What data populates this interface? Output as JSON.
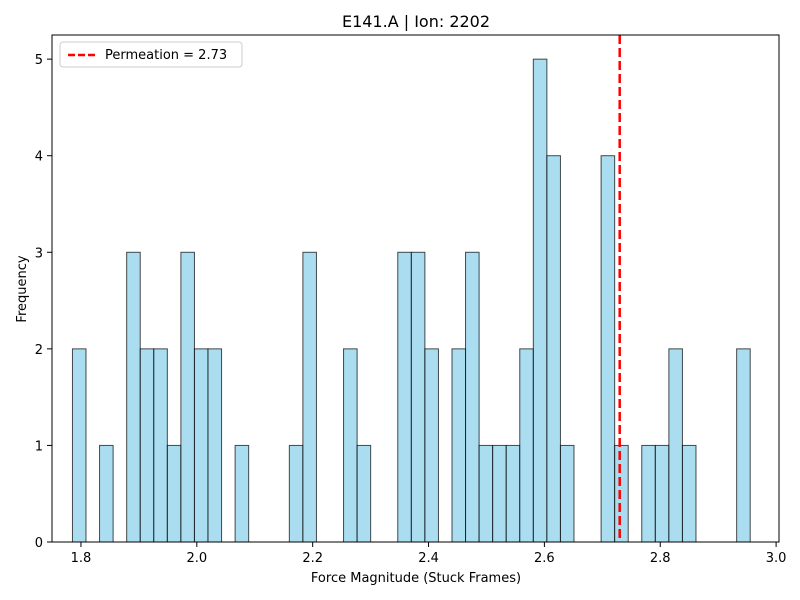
{
  "chart_data": {
    "type": "bar",
    "title": "E141.A | Ion: 2202",
    "xlabel": "Force Magnitude (Stuck Frames)",
    "ylabel": "Frequency",
    "xlim": [
      1.75,
      3.005
    ],
    "ylim": [
      0,
      5.25
    ],
    "xticks": [
      "1.8",
      "2.0",
      "2.2",
      "2.4",
      "2.6",
      "2.8",
      "3.0"
    ],
    "yticks": [
      "0",
      "1",
      "2",
      "3",
      "4",
      "5"
    ],
    "bin_width": 0.0234,
    "bins": [
      {
        "x": 1.7853,
        "count": 2
      },
      {
        "x": 1.8321,
        "count": 1
      },
      {
        "x": 1.8789,
        "count": 3
      },
      {
        "x": 1.9023,
        "count": 2
      },
      {
        "x": 1.9257,
        "count": 2
      },
      {
        "x": 1.9491,
        "count": 1
      },
      {
        "x": 1.9725,
        "count": 3
      },
      {
        "x": 1.9959,
        "count": 2
      },
      {
        "x": 2.0193,
        "count": 2
      },
      {
        "x": 2.0661,
        "count": 1
      },
      {
        "x": 2.1597,
        "count": 1
      },
      {
        "x": 2.1831,
        "count": 3
      },
      {
        "x": 2.2533,
        "count": 2
      },
      {
        "x": 2.2767,
        "count": 1
      },
      {
        "x": 2.3469,
        "count": 3
      },
      {
        "x": 2.3703,
        "count": 3
      },
      {
        "x": 2.3937,
        "count": 2
      },
      {
        "x": 2.4405,
        "count": 2
      },
      {
        "x": 2.4639,
        "count": 3
      },
      {
        "x": 2.4873,
        "count": 1
      },
      {
        "x": 2.5107,
        "count": 1
      },
      {
        "x": 2.5341,
        "count": 1
      },
      {
        "x": 2.5575,
        "count": 2
      },
      {
        "x": 2.5809,
        "count": 5
      },
      {
        "x": 2.6043,
        "count": 4
      },
      {
        "x": 2.6277,
        "count": 1
      },
      {
        "x": 2.6979,
        "count": 4
      },
      {
        "x": 2.7213,
        "count": 1
      },
      {
        "x": 2.7681,
        "count": 1
      },
      {
        "x": 2.7915,
        "count": 1
      },
      {
        "x": 2.8149,
        "count": 2
      },
      {
        "x": 2.8383,
        "count": 1
      },
      {
        "x": 2.9319,
        "count": 2
      }
    ],
    "reference_line": {
      "label": "Permeation = 2.73",
      "x": 2.73,
      "color": "#ff0000",
      "style": "dashed"
    },
    "legend": {
      "placement": "top-left"
    },
    "bar_color": "#87ceeb",
    "bar_edge_color": "#000000",
    "grid": false
  }
}
